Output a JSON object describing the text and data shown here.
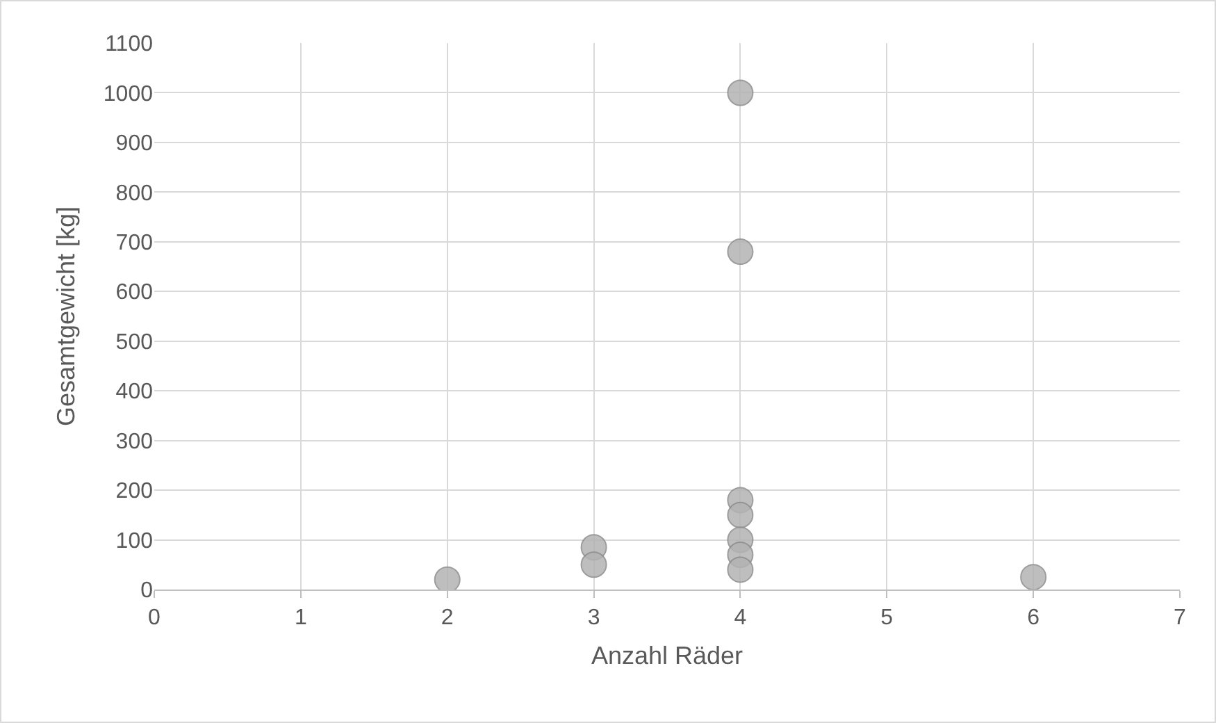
{
  "chart_data": {
    "type": "scatter",
    "xlabel": "Anzahl Räder",
    "ylabel": "Gesamtgewicht [kg]",
    "x": [
      2,
      3,
      3,
      4,
      4,
      4,
      4,
      4,
      4,
      4,
      6
    ],
    "values": [
      20,
      85,
      50,
      1000,
      680,
      180,
      150,
      100,
      70,
      40,
      25
    ],
    "color": "#b3b3b3",
    "marker": "circle",
    "grid": true,
    "legend": false,
    "xlim": [
      0,
      7
    ],
    "xticks": [
      0,
      1,
      2,
      3,
      4,
      5,
      6,
      7
    ],
    "ylim": [
      0,
      1100
    ],
    "yticks": [
      0,
      100,
      200,
      300,
      400,
      500,
      600,
      700,
      800,
      900,
      1000,
      1100
    ]
  }
}
